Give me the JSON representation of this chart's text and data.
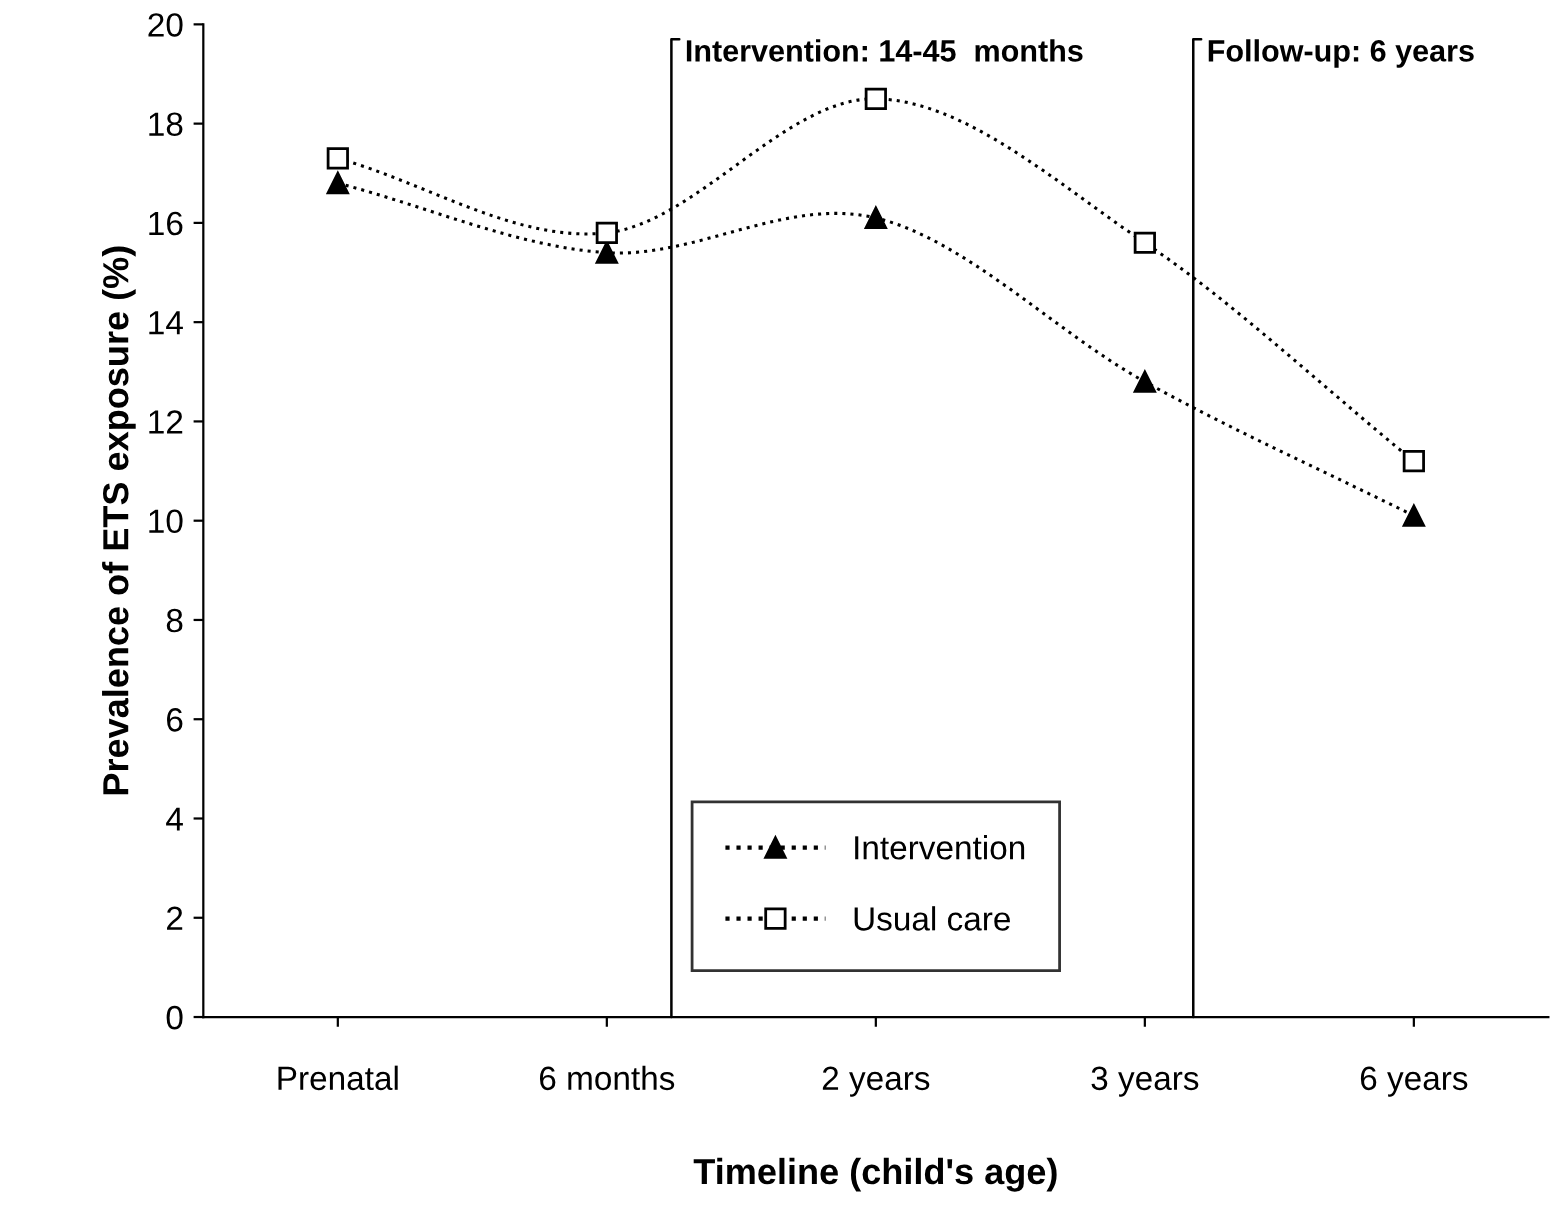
{
  "chart_data": {
    "type": "line",
    "xlabel": "Timeline (child's age)",
    "ylabel": "Prevalence of ETS exposure (%)",
    "categories": [
      "Prenatal",
      "6 months",
      "2 years",
      "3 years",
      "6 years"
    ],
    "ylim": [
      0,
      20
    ],
    "yticks": [
      0,
      2,
      4,
      6,
      8,
      10,
      12,
      14,
      16,
      18,
      20
    ],
    "series": [
      {
        "name": "Intervention",
        "color": "#000000",
        "marker": "triangle",
        "values": [
          16.8,
          15.4,
          16.1,
          12.8,
          10.1
        ]
      },
      {
        "name": "Usual care",
        "color": "#000000",
        "marker": "square",
        "values": [
          17.3,
          15.8,
          18.5,
          15.6,
          11.2
        ]
      }
    ],
    "annotations": [
      "Intervention: 14-45  months",
      "Follow-up: 6 years"
    ],
    "line_style": "dotted",
    "grid": false,
    "legend": "bottom"
  }
}
